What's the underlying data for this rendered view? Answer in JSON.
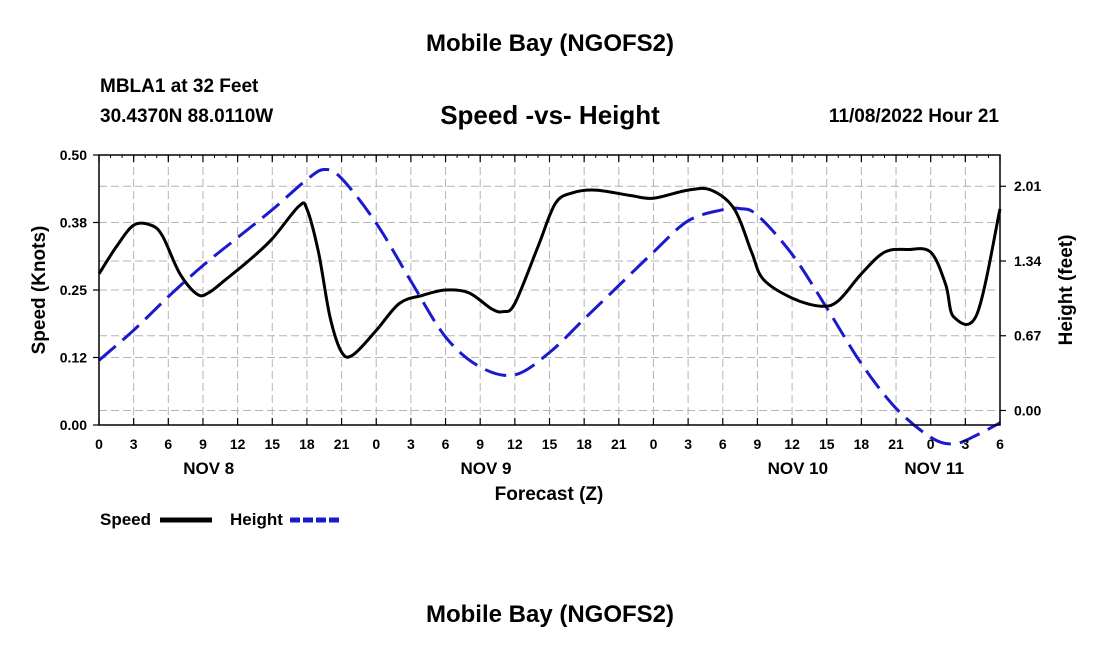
{
  "header": {
    "title": "Mobile Bay (NGOFS2)",
    "station": "MBLA1 at 32 Feet",
    "coords": "30.4370N  88.0110W",
    "subtitle": "Speed -vs- Height",
    "datetime": "11/08/2022 Hour 21"
  },
  "footer": {
    "title": "Mobile Bay (NGOFS2)"
  },
  "chart_data": {
    "type": "line",
    "xlabel": "Forecast (Z)",
    "x_range_hours": [
      0,
      78
    ],
    "x_tick_step_hours": 3,
    "x_tick_labels": [
      "0",
      "3",
      "6",
      "9",
      "12",
      "15",
      "18",
      "21",
      "0",
      "3",
      "6",
      "9",
      "12",
      "15",
      "18",
      "21",
      "0",
      "3",
      "6",
      "9",
      "12",
      "15",
      "18",
      "21",
      "0",
      "3",
      "6"
    ],
    "day_labels": [
      {
        "label": "NOV 8",
        "hour": 9.5
      },
      {
        "label": "NOV 9",
        "hour": 33.5
      },
      {
        "label": "NOV 10",
        "hour": 60.5
      },
      {
        "label": "NOV 11",
        "hour": 72.3
      }
    ],
    "left_axis": {
      "label": "Speed (Knots)",
      "range": [
        0,
        0.5
      ],
      "ticks": [
        0.0,
        0.125,
        0.25,
        0.375,
        0.5
      ],
      "tick_labels": [
        "0.00",
        "0.12",
        "0.25",
        "0.38",
        "0.50"
      ]
    },
    "right_axis": {
      "label": "Height (feet)",
      "range": [
        -0.13,
        2.29
      ],
      "ticks": [
        0.0,
        0.67,
        1.34,
        2.01
      ],
      "tick_labels": [
        "0.00",
        "0.67",
        "1.34",
        "2.01"
      ]
    },
    "grid": true,
    "series": [
      {
        "name": "Speed",
        "axis": "left",
        "color": "#000000",
        "dash": "solid",
        "x": [
          0,
          1.5,
          3,
          4.5,
          5.5,
          7,
          8.5,
          9.5,
          11,
          13,
          15,
          17.3,
          18,
          19,
          20,
          21,
          22,
          24,
          26,
          28,
          30,
          32,
          34,
          35,
          36,
          38,
          39.5,
          41,
          43,
          46,
          48,
          51,
          53,
          55,
          56.5,
          57.5,
          60,
          62.5,
          64,
          66,
          68,
          70,
          72,
          73.3,
          74,
          76,
          78
        ],
        "y": [
          0.28,
          0.33,
          0.37,
          0.37,
          0.35,
          0.28,
          0.242,
          0.245,
          0.27,
          0.305,
          0.345,
          0.405,
          0.4,
          0.32,
          0.2,
          0.135,
          0.13,
          0.175,
          0.225,
          0.24,
          0.25,
          0.245,
          0.215,
          0.21,
          0.225,
          0.33,
          0.41,
          0.43,
          0.435,
          0.425,
          0.42,
          0.435,
          0.435,
          0.4,
          0.32,
          0.27,
          0.235,
          0.22,
          0.23,
          0.28,
          0.32,
          0.325,
          0.32,
          0.26,
          0.2,
          0.205,
          0.4
        ]
      },
      {
        "name": "Height",
        "axis": "right",
        "color": "#1a1acc",
        "dash": "dashed",
        "x": [
          0,
          3,
          6,
          9,
          12,
          15,
          18,
          19.5,
          21,
          24,
          27,
          30,
          33,
          36,
          39,
          42,
          45,
          48,
          51,
          54,
          55.5,
          57,
          60,
          63,
          66,
          69,
          72,
          74,
          76,
          78
        ],
        "y": [
          0.45,
          0.72,
          1.02,
          1.3,
          1.55,
          1.8,
          2.07,
          2.16,
          2.08,
          1.68,
          1.16,
          0.66,
          0.39,
          0.32,
          0.52,
          0.82,
          1.12,
          1.42,
          1.7,
          1.8,
          1.81,
          1.75,
          1.4,
          0.92,
          0.42,
          0.02,
          -0.24,
          -0.3,
          -0.22,
          -0.11
        ]
      }
    ],
    "legend": [
      {
        "label": "Speed",
        "color": "#000000",
        "dash": "solid"
      },
      {
        "label": "Height",
        "color": "#1a1acc",
        "dash": "dashed"
      }
    ]
  }
}
